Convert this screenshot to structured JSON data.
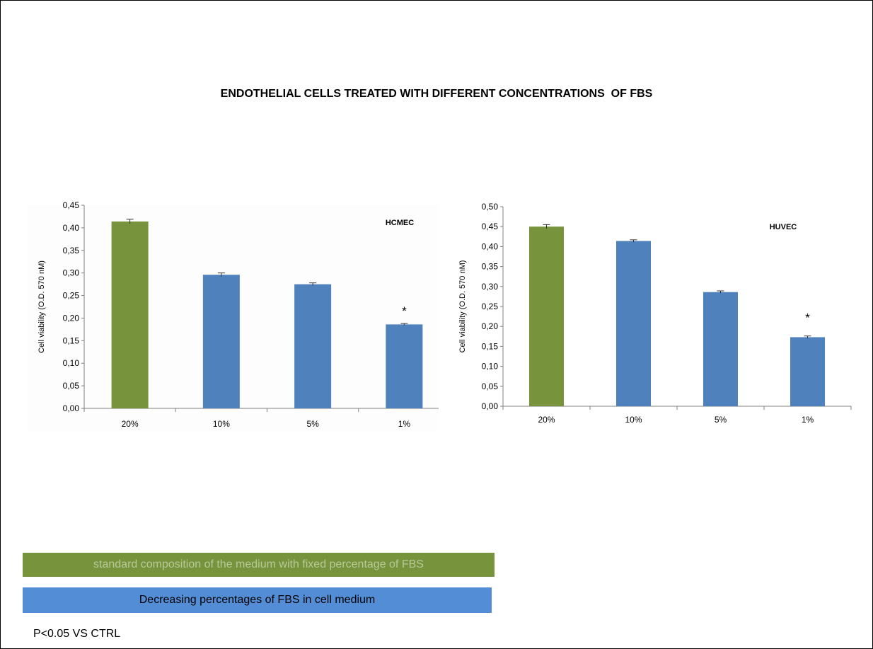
{
  "title": "ENDOTHELIAL CELLS TREATED WITH DIFFERENT CONCENTRATIONS  OF FBS",
  "colors": {
    "green": "#77933C",
    "blue": "#4F81BD",
    "legend_green_text": "#B7C99A",
    "legend_blue_fill": "#538DD5"
  },
  "chart_data": [
    {
      "type": "bar",
      "label": "HCMEC",
      "ylabel": "Cell viability (O.D. 570 nM)",
      "categories": [
        "20%",
        "10%",
        "5%",
        "1%"
      ],
      "values": [
        0.414,
        0.296,
        0.275,
        0.186
      ],
      "errors": [
        0.005,
        0.004,
        0.003,
        0.002
      ],
      "bar_colors": [
        "#77933C",
        "#4F81BD",
        "#4F81BD",
        "#4F81BD"
      ],
      "significance": [
        "",
        "",
        "",
        "*"
      ],
      "ylim": [
        0,
        0.45
      ],
      "yticks": [
        "0,00",
        "0,05",
        "0,10",
        "0,15",
        "0,20",
        "0,25",
        "0,30",
        "0,35",
        "0,40",
        "0,45"
      ],
      "grid": false
    },
    {
      "type": "bar",
      "label": "HUVEC",
      "ylabel": "Cell viability (O.D. 570 nM)",
      "categories": [
        "20%",
        "10%",
        "5%",
        "1%"
      ],
      "values": [
        0.45,
        0.414,
        0.286,
        0.173
      ],
      "errors": [
        0.005,
        0.003,
        0.003,
        0.003
      ],
      "bar_colors": [
        "#77933C",
        "#4F81BD",
        "#4F81BD",
        "#4F81BD"
      ],
      "significance": [
        "",
        "",
        "",
        "*"
      ],
      "ylim": [
        0,
        0.5
      ],
      "yticks": [
        "0,00",
        "0,05",
        "0,10",
        "0,15",
        "0,20",
        "0,25",
        "0,30",
        "0,35",
        "0,40",
        "0,45",
        "0,50"
      ],
      "grid": false
    }
  ],
  "legend": {
    "green_text": "standard composition of the medium with fixed percentage of FBS",
    "blue_text": "Decreasing percentages of FBS in cell medium"
  },
  "note": "P<0.05 VS CTRL"
}
